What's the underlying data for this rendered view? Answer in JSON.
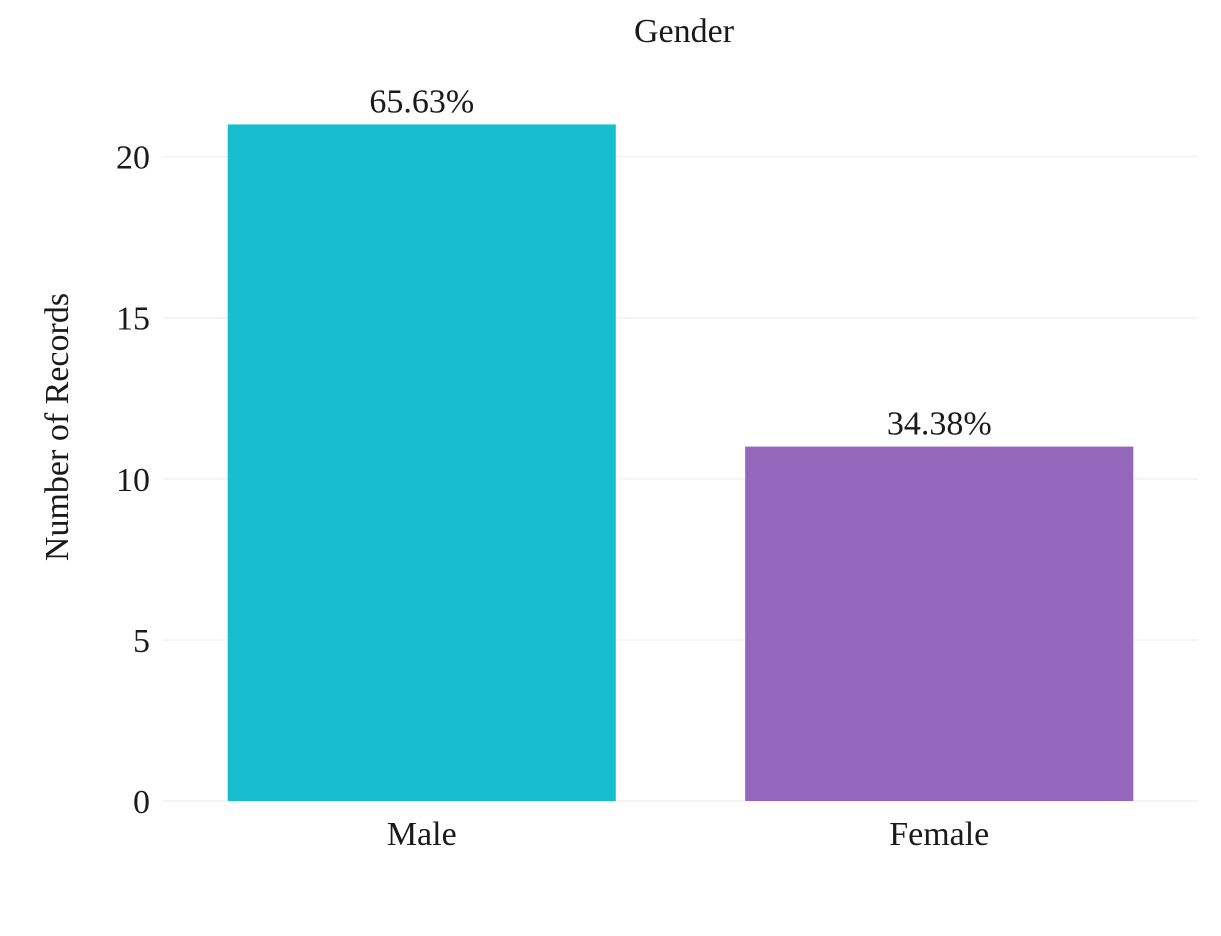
{
  "chart_data": {
    "type": "bar",
    "title": "Gender",
    "xlabel": "",
    "ylabel": "Number of Records",
    "categories": [
      "Male",
      "Female"
    ],
    "values": [
      21,
      11
    ],
    "data_labels": [
      "65.63%",
      "34.38%"
    ],
    "colors": [
      "#17becf",
      "#9467bd"
    ],
    "ylim": [
      0,
      23
    ],
    "yticks": [
      0,
      5,
      10,
      15,
      20
    ],
    "grid": true,
    "legend": "none"
  }
}
